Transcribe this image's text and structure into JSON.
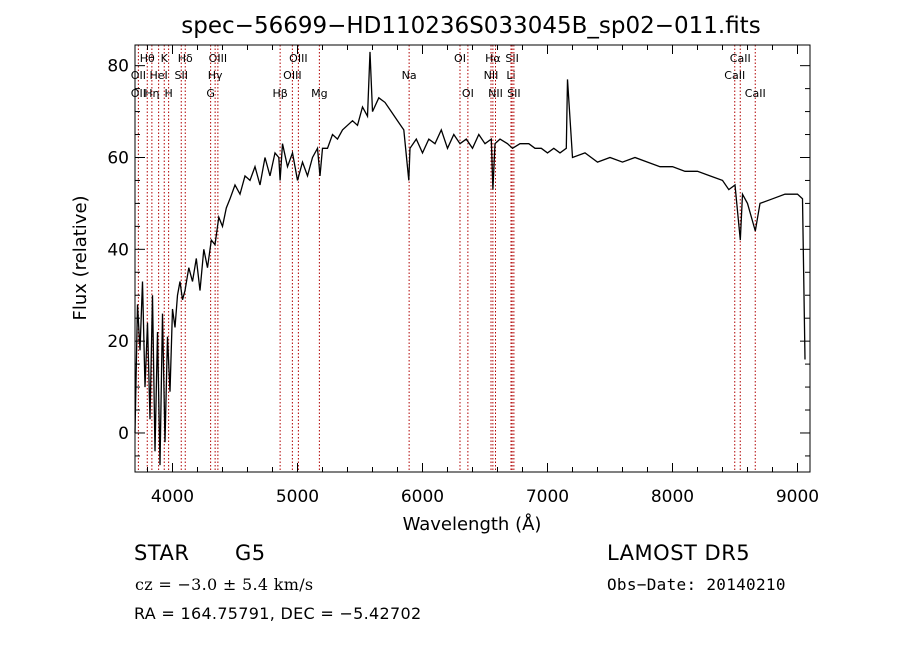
{
  "chart_data": {
    "type": "line",
    "title": "spec−56699−HD110236S033045B_sp02−011.fits",
    "xlabel": "Wavelength (Å)",
    "ylabel": "Flux (relative)",
    "xlim": [
      3700,
      9100
    ],
    "ylim": [
      -8.5,
      84.5
    ],
    "x_ticks": [
      4000,
      5000,
      6000,
      7000,
      8000,
      9000
    ],
    "y_ticks": [
      0,
      20,
      40,
      60,
      80
    ],
    "grid": false,
    "series": [
      {
        "color": "#000000",
        "x": [
          3700,
          3720,
          3740,
          3760,
          3780,
          3800,
          3820,
          3840,
          3860,
          3880,
          3900,
          3920,
          3940,
          3960,
          3980,
          4000,
          4020,
          4040,
          4060,
          4080,
          4100,
          4130,
          4160,
          4190,
          4220,
          4250,
          4280,
          4310,
          4340,
          4370,
          4400,
          4430,
          4460,
          4500,
          4540,
          4580,
          4620,
          4660,
          4700,
          4740,
          4780,
          4820,
          4850,
          4861,
          4880,
          4920,
          4960,
          5000,
          5040,
          5080,
          5120,
          5160,
          5180,
          5200,
          5240,
          5280,
          5320,
          5360,
          5400,
          5440,
          5480,
          5520,
          5560,
          5580,
          5600,
          5650,
          5700,
          5750,
          5800,
          5850,
          5890,
          5900,
          5950,
          6000,
          6050,
          6100,
          6150,
          6200,
          6250,
          6300,
          6350,
          6400,
          6450,
          6500,
          6550,
          6563,
          6580,
          6620,
          6680,
          6720,
          6780,
          6850,
          6900,
          6950,
          7000,
          7050,
          7100,
          7150,
          7160,
          7200,
          7300,
          7400,
          7500,
          7600,
          7700,
          7800,
          7900,
          8000,
          8100,
          8200,
          8300,
          8400,
          8450,
          8500,
          8542,
          8560,
          8600,
          8662,
          8700,
          8800,
          8900,
          9000,
          9040,
          9060
        ],
        "y": [
          0,
          28,
          18,
          33,
          10,
          24,
          3,
          30,
          -4,
          22,
          -7,
          26,
          -2,
          21,
          9,
          27,
          23,
          30,
          33,
          29,
          31,
          36,
          33,
          38,
          31,
          40,
          36,
          42,
          41,
          47,
          45,
          49,
          51,
          54,
          52,
          56,
          55,
          58,
          54,
          60,
          56,
          61,
          60,
          55,
          63,
          58,
          61,
          55,
          59,
          56,
          60,
          62,
          56,
          62,
          62,
          65,
          64,
          66,
          67,
          68,
          67,
          71,
          69,
          83,
          70,
          73,
          72,
          70,
          68,
          66,
          55,
          62,
          64,
          61,
          64,
          63,
          66,
          62,
          65,
          63,
          64,
          62,
          65,
          63,
          64,
          53,
          63,
          64,
          63,
          62,
          63,
          63,
          62,
          62,
          61,
          62,
          61,
          62,
          77,
          60,
          61,
          59,
          60,
          59,
          60,
          59,
          58,
          58,
          57,
          57,
          56,
          55,
          53,
          54,
          42,
          52,
          50,
          44,
          50,
          51,
          52,
          52,
          51,
          16
        ]
      }
    ],
    "line_markers": [
      {
        "label": "Hθ",
        "x": 3798,
        "row": 0
      },
      {
        "label": "OII",
        "x": 3727,
        "row": 1
      },
      {
        "label": "OII",
        "x": 3727,
        "row": 2
      },
      {
        "label": "K",
        "x": 3934,
        "row": 0
      },
      {
        "label": "HeI",
        "x": 3889,
        "row": 1
      },
      {
        "label": "Hη",
        "x": 3835,
        "row": 2
      },
      {
        "label": "Hδ",
        "x": 4102,
        "row": 0
      },
      {
        "label": "SII",
        "x": 4070,
        "row": 1
      },
      {
        "label": "H",
        "x": 3969,
        "row": 2
      },
      {
        "label": "OIII",
        "x": 4363,
        "row": 0
      },
      {
        "label": "Hγ",
        "x": 4341,
        "row": 1
      },
      {
        "label": "G",
        "x": 4305,
        "row": 2
      },
      {
        "label": "OIII",
        "x": 5007,
        "row": 0
      },
      {
        "label": "OIII",
        "x": 4959,
        "row": 1
      },
      {
        "label": "Hβ",
        "x": 4861,
        "row": 2
      },
      {
        "label": "Mg",
        "x": 5175,
        "row": 2
      },
      {
        "label": "Na",
        "x": 5893,
        "row": 1
      },
      {
        "label": "OI",
        "x": 6300,
        "row": 0
      },
      {
        "label": "OI",
        "x": 6363,
        "row": 2
      },
      {
        "label": "Hα",
        "x": 6563,
        "row": 0
      },
      {
        "label": "NII",
        "x": 6548,
        "row": 1
      },
      {
        "label": "NII",
        "x": 6584,
        "row": 2
      },
      {
        "label": "SII",
        "x": 6717,
        "row": 0
      },
      {
        "label": "Li",
        "x": 6708,
        "row": 1
      },
      {
        "label": "SII",
        "x": 6731,
        "row": 2
      },
      {
        "label": "CaII",
        "x": 8542,
        "row": 0
      },
      {
        "label": "CaII",
        "x": 8498,
        "row": 1
      },
      {
        "label": "CaII",
        "x": 8662,
        "row": 2
      }
    ]
  },
  "info": {
    "class_label": "STAR",
    "subclass": "G5",
    "survey": "LAMOST DR5",
    "redshift": "cz = −3.0 ± 5.4 km/s",
    "obs_date": "Obs−Date: 20140210",
    "coords": "RA = 164.75791, DEC =  −5.42702"
  }
}
